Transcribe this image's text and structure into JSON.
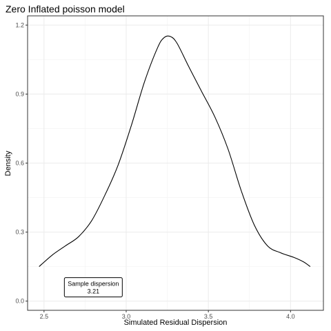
{
  "chart_data": {
    "type": "line",
    "title": "Zero Inflated poisson model",
    "xlabel": "Simulated Residual Dispersion",
    "ylabel": "Density",
    "xlim": [
      2.4,
      4.2
    ],
    "ylim": [
      -0.04,
      1.24
    ],
    "x_ticks": [
      2.5,
      3.0,
      3.5,
      4.0
    ],
    "x_tick_labels": [
      "2.5",
      "3.0",
      "3.5",
      "4.0"
    ],
    "y_ticks": [
      0.0,
      0.3,
      0.6,
      0.9,
      1.2
    ],
    "y_tick_labels": [
      "0.0",
      "0.3",
      "0.6",
      "0.9",
      "1.2"
    ],
    "grid": true,
    "series": [
      {
        "color": "#000000",
        "x": [
          2.47,
          2.55,
          2.63,
          2.71,
          2.79,
          2.87,
          2.95,
          3.03,
          3.11,
          3.19,
          3.23,
          3.27,
          3.31,
          3.38,
          3.46,
          3.54,
          3.62,
          3.7,
          3.78,
          3.86,
          3.94,
          4.02,
          4.08,
          4.12
        ],
        "y": [
          0.15,
          0.2,
          0.24,
          0.28,
          0.35,
          0.46,
          0.59,
          0.76,
          0.95,
          1.1,
          1.145,
          1.15,
          1.12,
          1.02,
          0.91,
          0.8,
          0.66,
          0.48,
          0.33,
          0.24,
          0.21,
          0.19,
          0.17,
          0.15
        ]
      }
    ],
    "annotation": {
      "label": "Sample dispersion",
      "value": "3.21",
      "x": 2.8,
      "y": 0.06
    }
  }
}
